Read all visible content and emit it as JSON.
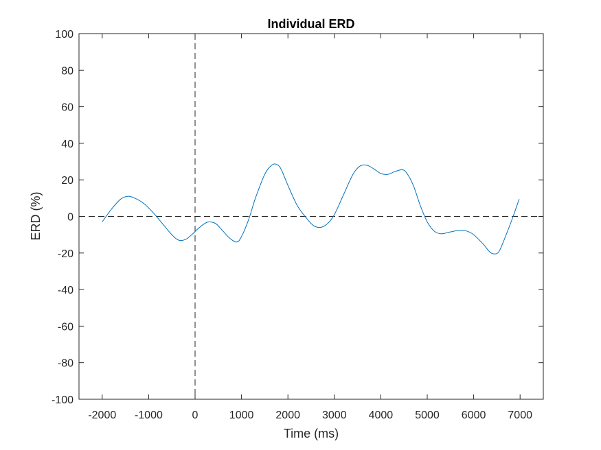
{
  "chart_data": {
    "type": "line",
    "title": "Individual ERD",
    "xlabel": "Time (ms)",
    "ylabel": "ERD (%)",
    "xlim": [
      -2500,
      7500
    ],
    "ylim": [
      -100,
      100
    ],
    "xticks": [
      -2000,
      -1000,
      0,
      1000,
      2000,
      3000,
      4000,
      5000,
      6000,
      7000
    ],
    "yticks": [
      -100,
      -80,
      -60,
      -40,
      -20,
      0,
      20,
      40,
      60,
      80,
      100
    ],
    "grid": false,
    "reference_lines": {
      "horizontal_y": 0,
      "vertical_x": 0,
      "style": "dashed"
    },
    "series": [
      {
        "color": "#0072BD",
        "points": [
          [
            -2000,
            -3
          ],
          [
            -1800,
            4
          ],
          [
            -1600,
            9.5
          ],
          [
            -1450,
            11
          ],
          [
            -1300,
            10
          ],
          [
            -1100,
            7
          ],
          [
            -900,
            2
          ],
          [
            -700,
            -4
          ],
          [
            -500,
            -10
          ],
          [
            -350,
            -13
          ],
          [
            -200,
            -12.5
          ],
          [
            -50,
            -9.5
          ],
          [
            50,
            -7
          ],
          [
            200,
            -4
          ],
          [
            300,
            -3
          ],
          [
            450,
            -4
          ],
          [
            600,
            -8
          ],
          [
            750,
            -12
          ],
          [
            900,
            -14
          ],
          [
            1000,
            -11
          ],
          [
            1150,
            -2
          ],
          [
            1300,
            10
          ],
          [
            1500,
            23
          ],
          [
            1650,
            28
          ],
          [
            1750,
            28.5
          ],
          [
            1850,
            26
          ],
          [
            2000,
            17
          ],
          [
            2200,
            6
          ],
          [
            2400,
            -1
          ],
          [
            2550,
            -5
          ],
          [
            2700,
            -6
          ],
          [
            2850,
            -4
          ],
          [
            3000,
            1
          ],
          [
            3200,
            12
          ],
          [
            3400,
            23
          ],
          [
            3550,
            27.5
          ],
          [
            3700,
            28
          ],
          [
            3850,
            26
          ],
          [
            4000,
            23.5
          ],
          [
            4150,
            23
          ],
          [
            4300,
            24.5
          ],
          [
            4450,
            25.5
          ],
          [
            4550,
            24
          ],
          [
            4700,
            17
          ],
          [
            4850,
            6
          ],
          [
            5000,
            -3
          ],
          [
            5150,
            -8
          ],
          [
            5300,
            -9.5
          ],
          [
            5500,
            -8.5
          ],
          [
            5700,
            -7.5
          ],
          [
            5850,
            -8
          ],
          [
            6000,
            -10
          ],
          [
            6200,
            -15
          ],
          [
            6350,
            -19.5
          ],
          [
            6450,
            -20.5
          ],
          [
            6550,
            -19
          ],
          [
            6700,
            -10
          ],
          [
            6850,
            0
          ],
          [
            6980,
            9.5
          ]
        ]
      }
    ]
  }
}
